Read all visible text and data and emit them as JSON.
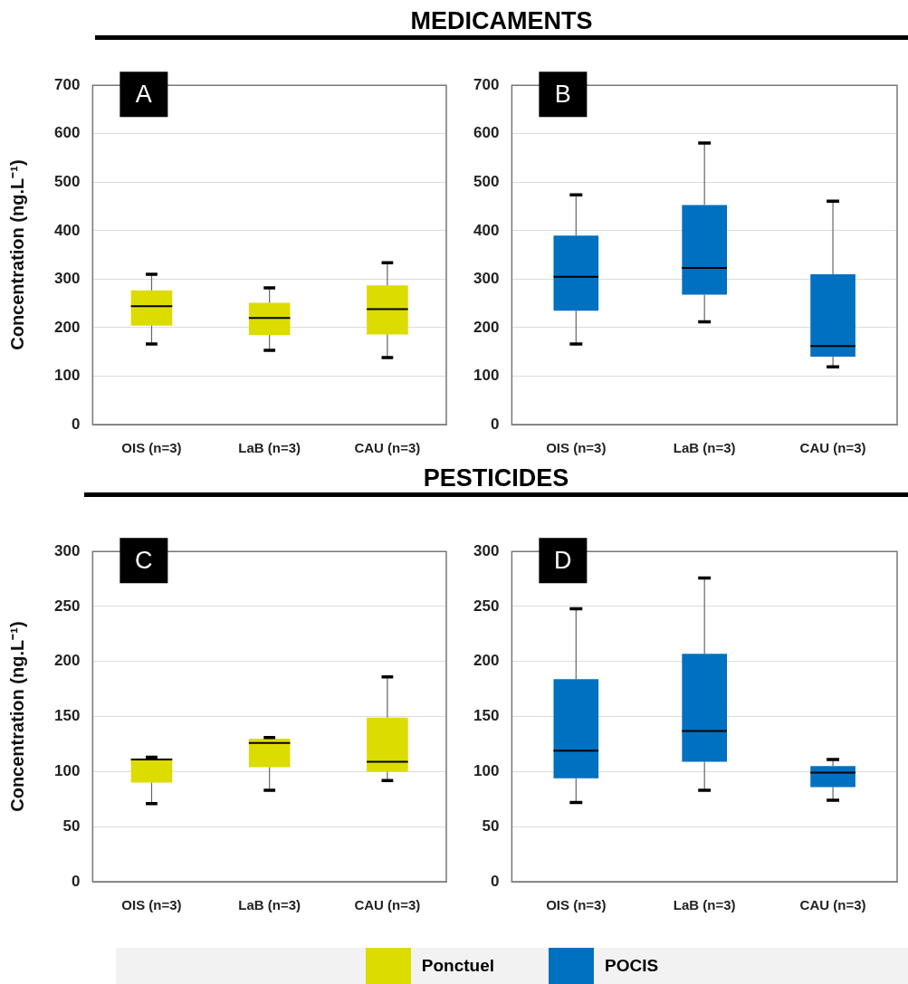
{
  "chart_data": [
    {
      "type": "box",
      "title": "MEDICAMENTS",
      "ylabel": "Concentration (ng.L⁻¹)",
      "annotations": [
        "A"
      ],
      "categories": [
        "OIS (n=3)",
        "LaB (n=3)",
        "CAU (n=3)"
      ],
      "ylim": [
        0,
        700
      ],
      "yticks": [
        0,
        100,
        200,
        300,
        400,
        500,
        600,
        700
      ],
      "grid": "y",
      "legend": "bottom",
      "series": [
        {
          "name": "Ponctuel",
          "color": "#dcdc00",
          "boxes": [
            {
              "low": 166,
              "q1": 204,
              "median": 244,
              "q3": 277,
              "high": 310
            },
            {
              "low": 153,
              "q1": 185,
              "median": 220,
              "q3": 251,
              "high": 282
            },
            {
              "low": 138,
              "q1": 186,
              "median": 238,
              "q3": 287,
              "high": 334
            }
          ]
        }
      ]
    },
    {
      "type": "box",
      "annotations": [
        "B"
      ],
      "categories": [
        "OIS (n=3)",
        "LaB (n=3)",
        "CAU (n=3)"
      ],
      "ylim": [
        0,
        700
      ],
      "yticks": [
        0,
        100,
        200,
        300,
        400,
        500,
        600,
        700
      ],
      "grid": "y",
      "legend": "bottom",
      "series": [
        {
          "name": "POCIS",
          "color": "#0070c0",
          "boxes": [
            {
              "low": 166,
              "q1": 235,
              "median": 305,
              "q3": 390,
              "high": 474
            },
            {
              "low": 212,
              "q1": 268,
              "median": 323,
              "q3": 453,
              "high": 581
            },
            {
              "low": 119,
              "q1": 140,
              "median": 162,
              "q3": 310,
              "high": 461
            }
          ]
        }
      ]
    },
    {
      "type": "box",
      "title": "PESTICIDES",
      "ylabel": "Concentration (ng.L⁻¹)",
      "annotations": [
        "C"
      ],
      "categories": [
        "OIS (n=3)",
        "LaB (n=3)",
        "CAU (n=3)"
      ],
      "ylim": [
        0,
        300
      ],
      "yticks": [
        0,
        50,
        100,
        150,
        200,
        250,
        300
      ],
      "grid": "y",
      "series": [
        {
          "color": "#dcdc00",
          "boxes": [
            {
              "low": 71,
              "q1": 90,
              "median": 111,
              "q3": 112,
              "high": 113
            },
            {
              "low": 83,
              "q1": 104,
              "median": 126,
              "q3": 130,
              "high": 131
            },
            {
              "low": 92,
              "q1": 100,
              "median": 109,
              "q3": 149,
              "high": 186
            }
          ]
        }
      ]
    },
    {
      "type": "box",
      "annotations": [
        "D"
      ],
      "categories": [
        "OIS (n=3)",
        "LaB (n=3)",
        "CAU (n=3)"
      ],
      "ylim": [
        0,
        300
      ],
      "yticks": [
        0,
        50,
        100,
        150,
        200,
        250,
        300
      ],
      "grid": "y",
      "series": [
        {
          "color": "#0070c0",
          "boxes": [
            {
              "low": 72,
              "q1": 94,
              "median": 119,
              "q3": 184,
              "high": 248
            },
            {
              "low": 83,
              "q1": 109,
              "median": 137,
              "q3": 207,
              "high": 276
            },
            {
              "low": 74,
              "q1": 86,
              "median": 99,
              "q3": 105,
              "high": 111
            }
          ]
        }
      ]
    }
  ]
}
